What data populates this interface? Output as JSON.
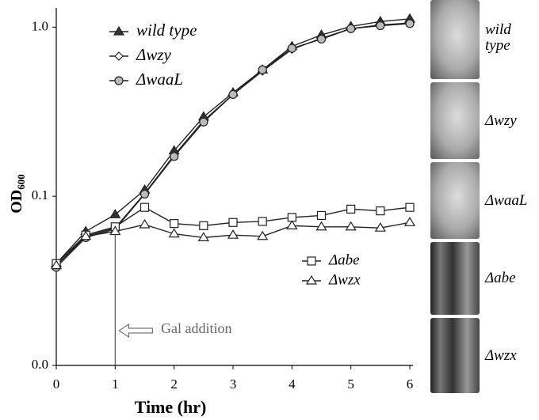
{
  "chart_data": {
    "type": "line",
    "x_label": "Time (hr)",
    "y_label": "OD",
    "y_label_subscript": "600",
    "x": [
      0,
      0.5,
      1,
      1.5,
      2,
      2.5,
      3,
      3.5,
      4,
      4.5,
      5,
      5.5,
      6
    ],
    "xlim": [
      0,
      6
    ],
    "xticks": [
      0,
      1,
      2,
      3,
      4,
      5,
      6
    ],
    "ylim": [
      0.01,
      1.3
    ],
    "log_scale_y": true,
    "yticks": [
      {
        "value": 0.01,
        "label": "0.0"
      },
      {
        "value": 0.1,
        "label": "0.1"
      },
      {
        "value": 1,
        "label": "1.0"
      }
    ],
    "series": [
      {
        "name": "wild type",
        "marker": "triangle",
        "color": "#222222",
        "marker_fill": "#333333",
        "values": [
          0.04,
          0.062,
          0.078,
          0.109,
          0.186,
          0.295,
          0.41,
          0.56,
          0.77,
          0.9,
          1.01,
          1.08,
          1.12
        ]
      },
      {
        "name": "Δwzy",
        "marker": "diamond",
        "color": "#222222",
        "marker_fill": "#ffffff",
        "values": [
          0.039,
          0.058,
          0.065,
          0.104,
          0.175,
          0.28,
          0.4,
          0.55,
          0.74,
          0.86,
          0.98,
          1.03,
          1.06
        ]
      },
      {
        "name": "ΔwaaL",
        "marker": "circle",
        "color": "#222222",
        "marker_fill": "#bbbbbb",
        "values": [
          0.038,
          0.057,
          0.064,
          0.103,
          0.172,
          0.275,
          0.4,
          0.56,
          0.75,
          0.85,
          0.98,
          1.02,
          1.05
        ]
      },
      {
        "name": "Δabe",
        "marker": "square",
        "color": "#222222",
        "marker_fill": "#ffffff",
        "values": [
          0.04,
          0.059,
          0.066,
          0.086,
          0.069,
          0.067,
          0.07,
          0.071,
          0.075,
          0.077,
          0.084,
          0.082,
          0.086
        ]
      },
      {
        "name": "Δwzx",
        "marker": "triangle",
        "color": "#222222",
        "marker_fill": "#ffffff",
        "values": [
          0.039,
          0.058,
          0.062,
          0.068,
          0.06,
          0.057,
          0.059,
          0.058,
          0.067,
          0.066,
          0.066,
          0.065,
          0.07
        ]
      }
    ],
    "annotation": "Gal addition",
    "photo_labels": [
      "wild type",
      "Δwzy",
      "ΔwaaL",
      "Δabe",
      "Δwzx"
    ]
  }
}
